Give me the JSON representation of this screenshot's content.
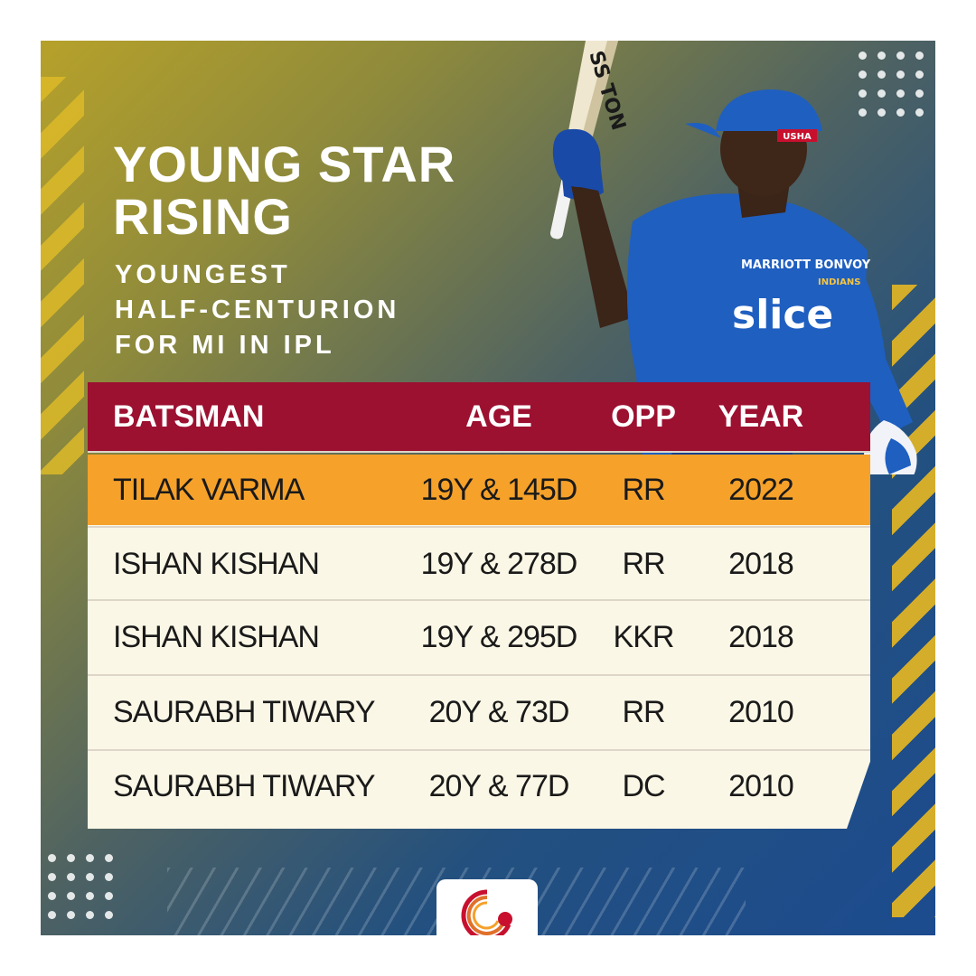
{
  "title": [
    "YOUNG STAR",
    "RISING"
  ],
  "subtitle": [
    "YOUNGEST",
    "HALF-CENTURION",
    "FOR MI IN IPL"
  ],
  "player_jersey": {
    "sponsor_main": "slice",
    "sponsor_top": "MARRIOTT BONVOY",
    "team_badge": "INDIANS",
    "cap_logo": "USHA",
    "bat_brand": "SS TON"
  },
  "table": {
    "columns": [
      "BATSMAN",
      "AGE",
      "OPP",
      "YEAR"
    ],
    "rows": [
      {
        "batsman": "TILAK VARMA",
        "age": "19Y & 145D",
        "opp": "RR",
        "year": "2022",
        "highlight": true
      },
      {
        "batsman": "ISHAN KISHAN",
        "age": "19Y & 278D",
        "opp": "RR",
        "year": "2018"
      },
      {
        "batsman": "ISHAN KISHAN",
        "age": "19Y & 295D",
        "opp": "KKR",
        "year": "2018"
      },
      {
        "batsman": "SAURABH TIWARY",
        "age": "20Y & 73D",
        "opp": "RR",
        "year": "2010"
      },
      {
        "batsman": "SAURABH TIWARY",
        "age": "20Y & 77D",
        "opp": "DC",
        "year": "2010"
      }
    ]
  },
  "colors": {
    "header": "#9c1030",
    "highlight": "#f5a12a",
    "row": "#fbf7e6",
    "accent_yellow": "#d4ad2a",
    "jersey_blue": "#1f5fc0"
  },
  "icons": {
    "logo": "cricket-ball-logo-icon"
  }
}
